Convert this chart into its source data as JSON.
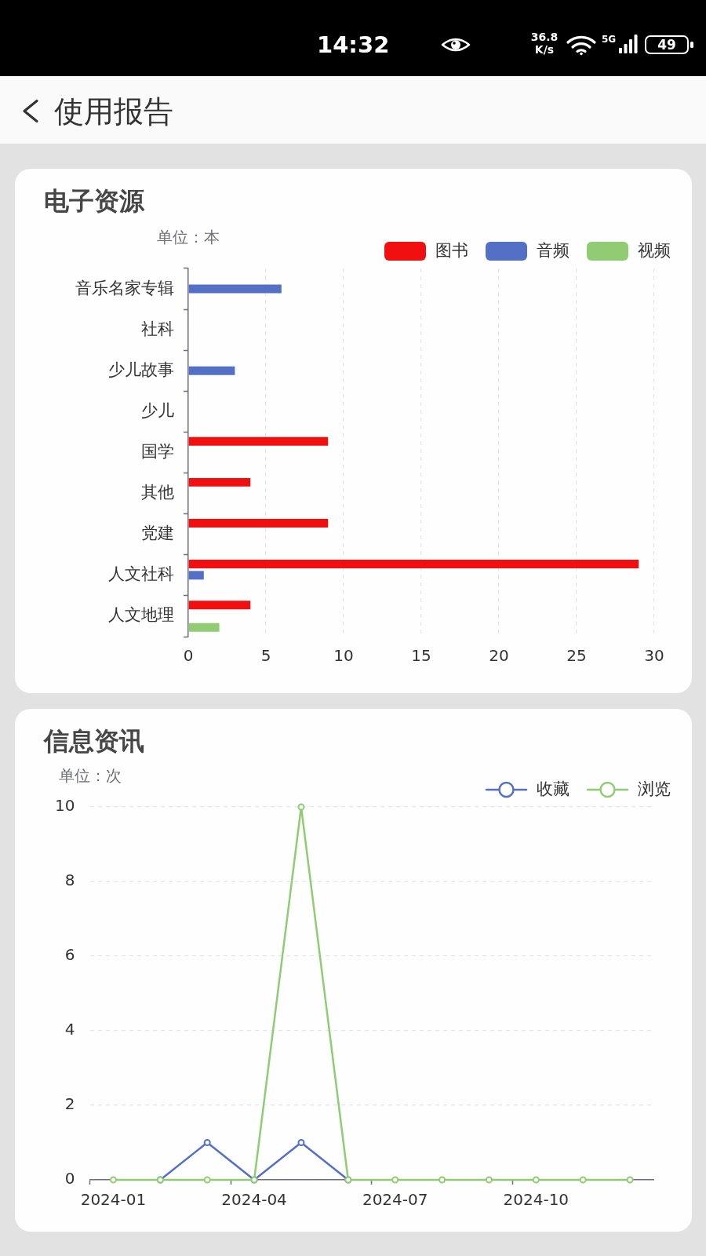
{
  "chart_data": [
    {
      "type": "other",
      "title": "使用报告",
      "annotations": [
        "14:32",
        "36.8",
        "K/s",
        "5G",
        "49"
      ]
    },
    {
      "type": "bar",
      "title": "电子资源",
      "ylabel": "单位：本",
      "orientation": "horizontal",
      "categories": [
        "音乐名家专辑",
        "社科",
        "少儿故事",
        "少儿",
        "国学",
        "其他",
        "党建",
        "人文社科",
        "人文地理"
      ],
      "series": [
        {
          "name": "图书",
          "color": "#f20f0f",
          "values": [
            null,
            null,
            null,
            null,
            9,
            4,
            9,
            29,
            4
          ]
        },
        {
          "name": "音频",
          "color": "#5470c6",
          "values": [
            6,
            null,
            3,
            null,
            null,
            null,
            null,
            1,
            null
          ]
        },
        {
          "name": "视频",
          "color": "#91cc75",
          "values": [
            null,
            null,
            null,
            null,
            null,
            null,
            null,
            null,
            2
          ]
        }
      ],
      "xlim": [
        0,
        30
      ],
      "xticks": [
        0,
        5,
        10,
        15,
        20,
        25,
        30
      ],
      "grid": "x",
      "legend": "top right"
    },
    {
      "type": "line",
      "title": "信息资讯",
      "ylabel": "单位：次",
      "categories": [
        "2024-01",
        null,
        null,
        "2024-04",
        null,
        null,
        "2024-07",
        null,
        null,
        "2024-10",
        null,
        null
      ],
      "series": [
        {
          "name": "收藏",
          "color": "#5470c6",
          "values": [
            null,
            0,
            1,
            0,
            1,
            0,
            null,
            null,
            null,
            null,
            null,
            null
          ]
        },
        {
          "name": "浏览",
          "color": "#91cc75",
          "values": [
            0,
            0,
            0,
            0,
            10,
            0,
            0,
            0,
            0,
            0,
            0,
            0
          ]
        }
      ],
      "ylim": [
        0,
        10
      ],
      "yticks": [
        0,
        2,
        4,
        6,
        8,
        10
      ],
      "grid": "y",
      "legend": "top right",
      "marker": "circle"
    }
  ]
}
